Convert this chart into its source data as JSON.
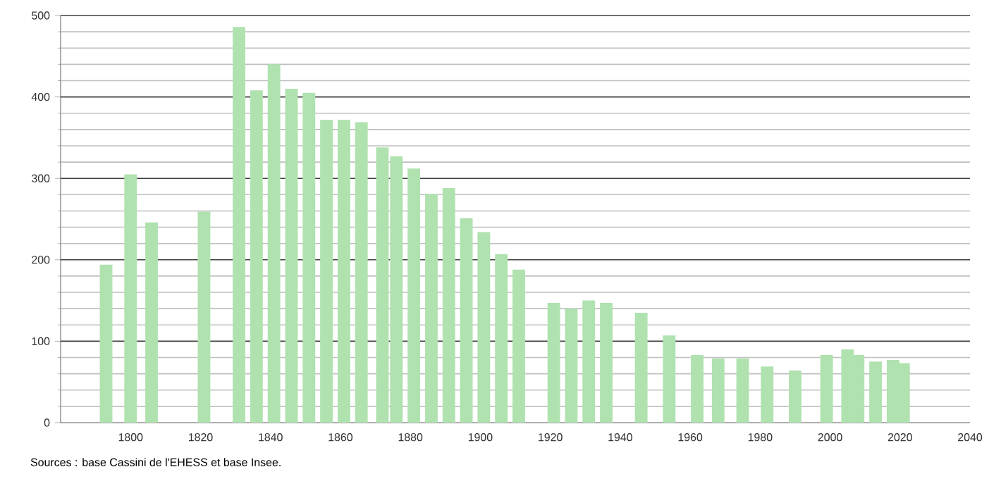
{
  "chart_data": {
    "type": "bar",
    "x": [
      1793,
      1800,
      1806,
      1821,
      1831,
      1836,
      1841,
      1846,
      1851,
      1856,
      1861,
      1866,
      1872,
      1876,
      1881,
      1886,
      1891,
      1896,
      1901,
      1906,
      1911,
      1921,
      1926,
      1931,
      1936,
      1946,
      1954,
      1962,
      1968,
      1975,
      1982,
      1990,
      1999,
      2005,
      2008,
      2013,
      2018,
      2021
    ],
    "values": [
      194,
      305,
      246,
      259,
      486,
      408,
      440,
      410,
      405,
      372,
      372,
      369,
      338,
      327,
      312,
      281,
      288,
      251,
      234,
      207,
      188,
      147,
      140,
      150,
      147,
      135,
      107,
      83,
      79,
      79,
      69,
      64,
      83,
      90,
      83,
      75,
      77,
      73
    ],
    "color": "#b0e2b0",
    "xlim": [
      1780,
      2040
    ],
    "xticks": [
      1800,
      1820,
      1840,
      1860,
      1880,
      1900,
      1920,
      1940,
      1960,
      1980,
      2000,
      2020,
      2040
    ],
    "ylim": [
      0,
      500
    ],
    "yticks": [
      0,
      {
        "value": 20,
        "label": null
      },
      {
        "value": 40,
        "label": null
      },
      {
        "value": 60,
        "label": null
      },
      {
        "value": 80,
        "label": null
      },
      100,
      {
        "value": 120,
        "label": null
      },
      {
        "value": 140,
        "label": null
      },
      {
        "value": 160,
        "label": null
      },
      {
        "value": 180,
        "label": null
      },
      200,
      {
        "value": 220,
        "label": null
      },
      {
        "value": 240,
        "label": null
      },
      {
        "value": 260,
        "label": null
      },
      {
        "value": 280,
        "label": null
      },
      300,
      {
        "value": 320,
        "label": null
      },
      {
        "value": 340,
        "label": null
      },
      {
        "value": 360,
        "label": null
      },
      {
        "value": 380,
        "label": null
      },
      400,
      {
        "value": 420,
        "label": null
      },
      {
        "value": 440,
        "label": null
      },
      {
        "value": 460,
        "label": null
      },
      {
        "value": 480,
        "label": null
      },
      500
    ],
    "grid": "y",
    "annotations": [
      "Sources : base Cassini de l'EHESS et base Insee."
    ]
  }
}
